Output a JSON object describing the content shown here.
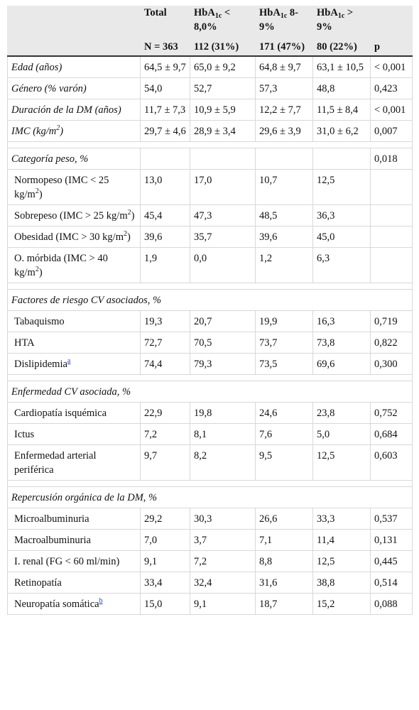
{
  "header": {
    "col_total": "Total",
    "col_hba": "HbA",
    "hba_sub": "1c",
    "col_lt8_suffix": " < 8,0%",
    "col_8_9_suffix": " 8-9%",
    "col_gt9_suffix": " > 9%",
    "n_total": "N = 363",
    "n_lt8": "112 (31%)",
    "n_8_9": "171 (47%)",
    "n_gt9": "80 (22%)",
    "p_label": "p"
  },
  "rows": {
    "edad": {
      "label": "Edad (años)",
      "v": [
        "64,5 ± 9,7",
        "65,0 ± 9,2",
        "64,8 ± 9,7",
        "63,1 ± 10,5",
        "< 0,001"
      ]
    },
    "genero": {
      "label": "Género (% varón)",
      "v": [
        "54,0",
        "52,7",
        "57,3",
        "48,8",
        "0,423"
      ]
    },
    "duracion": {
      "label": "Duración de la DM (años)",
      "v": [
        "11,7 ± 7,3",
        "10,9 ± 5,9",
        "12,2 ± 7,7",
        "11,5 ± 8,4",
        "< 0,001"
      ]
    },
    "imc": {
      "label": "IMC (kg/m",
      "label_sup": "2",
      "label_end": ")",
      "v": [
        "29,7 ± 4,6",
        "28,9 ± 3,4",
        "29,6 ± 3,9",
        "31,0 ± 6,2",
        "0,007"
      ]
    },
    "cat_peso": {
      "label": "Categoría peso, %",
      "p": "0,018"
    },
    "normopeso": {
      "label": "Normopeso (IMC < 25 kg/m",
      "sup": "2",
      "end": ")",
      "v": [
        "13,0",
        "17,0",
        "10,7",
        "12,5"
      ]
    },
    "sobrepeso": {
      "label": "Sobrepeso (IMC > 25 kg/m",
      "sup": "2",
      "end": ")",
      "v": [
        "45,4",
        "47,3",
        "48,5",
        "36,3"
      ]
    },
    "obesidad": {
      "label": "Obesidad (IMC > 30 kg/m",
      "sup": "2",
      "end": ")",
      "v": [
        "39,6",
        "35,7",
        "39,6",
        "45,0"
      ]
    },
    "morbida": {
      "label": "O. mórbida (IMC > 40 kg/m",
      "sup": "2",
      "end": ")",
      "v": [
        "1,9",
        "0,0",
        "1,2",
        "6,3"
      ]
    },
    "sec_riesgo": {
      "label": "Factores de riesgo CV asociados, %"
    },
    "tabaquismo": {
      "label": "Tabaquismo",
      "v": [
        "19,3",
        "20,7",
        "19,9",
        "16,3",
        "0,719"
      ]
    },
    "hta": {
      "label": "HTA",
      "v": [
        "72,7",
        "70,5",
        "73,7",
        "73,8",
        "0,822"
      ]
    },
    "dislipidemia": {
      "label": "Dislipidemia",
      "fn": "a",
      "v": [
        "74,4",
        "79,3",
        "73,5",
        "69,6",
        "0,300"
      ]
    },
    "sec_enf": {
      "label": "Enfermedad CV asociada, %"
    },
    "cardiopatia": {
      "label": "Cardiopatía isquémica",
      "v": [
        "22,9",
        "19,8",
        "24,6",
        "23,8",
        "0,752"
      ]
    },
    "ictus": {
      "label": "Ictus",
      "v": [
        "7,2",
        "8,1",
        "7,6",
        "5,0",
        "0,684"
      ]
    },
    "arterial": {
      "label": "Enfermedad arterial periférica",
      "v": [
        "9,7",
        "8,2",
        "9,5",
        "12,5",
        "0,603"
      ]
    },
    "sec_rep": {
      "label": "Repercusión orgánica de la DM, %"
    },
    "microalb": {
      "label": "Microalbuminuria",
      "v": [
        "29,2",
        "30,3",
        "26,6",
        "33,3",
        "0,537"
      ]
    },
    "macroalb": {
      "label": "Macroalbuminuria",
      "v": [
        "7,0",
        "3,7",
        "7,1",
        "11,4",
        "0,131"
      ]
    },
    "irenal": {
      "label": "I. renal (FG < 60 ml/min)",
      "v": [
        "9,1",
        "7,2",
        "8,8",
        "12,5",
        "0,445"
      ]
    },
    "retinopatia": {
      "label": "Retinopatía",
      "v": [
        "33,4",
        "32,4",
        "31,6",
        "38,8",
        "0,514"
      ]
    },
    "neuropatia": {
      "label": "Neuropatía somática",
      "fn": "b",
      "v": [
        "15,0",
        "9,1",
        "18,7",
        "15,2",
        "0,088"
      ]
    }
  },
  "colors": {
    "header_bg": "#e9e9e9",
    "grid": "#d8d8d8",
    "footnote_link": "#1a3fb8"
  }
}
